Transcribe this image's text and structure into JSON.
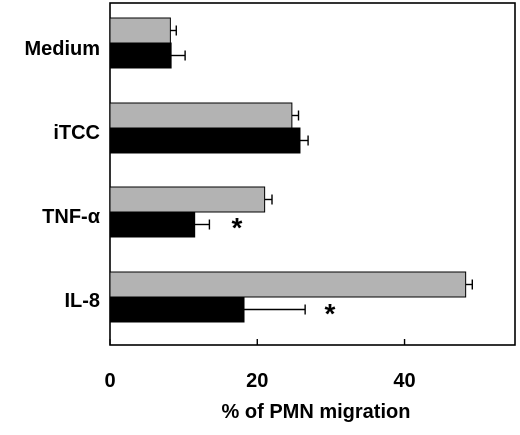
{
  "chart_data": {
    "type": "bar",
    "orientation": "horizontal",
    "categories": [
      "Medium",
      "iTCC",
      "TNF-α",
      "IL-8"
    ],
    "series": [
      {
        "color": "#b3b3b3",
        "values": [
          8.2,
          24.7,
          21.0,
          48.3
        ],
        "errors": [
          0.8,
          0.9,
          1.0,
          0.9
        ]
      },
      {
        "color": "#000000",
        "values": [
          8.3,
          25.8,
          11.5,
          18.2
        ],
        "errors": [
          1.9,
          1.1,
          2.0,
          8.3
        ]
      }
    ],
    "xlabel": "% of PMN migration",
    "ylabel": "",
    "title": "",
    "xlim": [
      0,
      55
    ],
    "xticks": [
      0,
      20,
      40
    ],
    "significance": [
      {
        "category": "TNF-α",
        "label": "*"
      },
      {
        "category": "IL-8",
        "label": "*"
      }
    ],
    "grid": false,
    "legend": "none"
  }
}
